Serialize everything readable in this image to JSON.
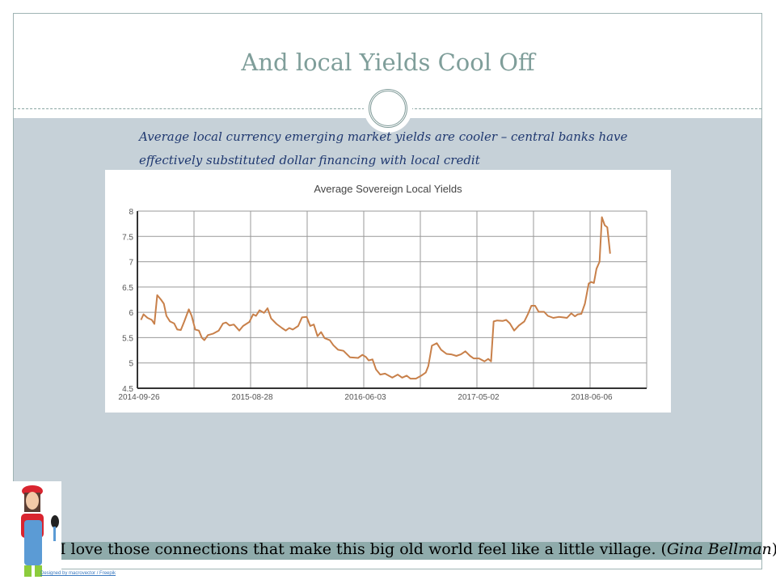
{
  "slide": {
    "title": "And local Yields Cool Off",
    "subtitle": "Average local currency  emerging market yields are  cooler – central banks have effectively substituted dollar financing with local credit",
    "quote_text": "I love those connections that make this big old world feel like a little village. (",
    "quote_author": "Gina Bellman",
    "quote_close": ")",
    "image_credit": "Designed by macrovector / Freepik",
    "colors": {
      "line": "#c8804a",
      "background_band": "#c6d1d8",
      "quote_bar": "#8fabab",
      "title": "#7f9e9a"
    }
  },
  "chart_data": {
    "type": "line",
    "title": "Average Sovereign Local Yields",
    "xlabel": "",
    "ylabel": "",
    "xlim": [
      0,
      216
    ],
    "ylim": [
      4.5,
      8
    ],
    "yticks": [
      4.5,
      5,
      5.5,
      6,
      6.5,
      7,
      7.5,
      8
    ],
    "ytick_labels": [
      "4.5",
      "5",
      "5.5",
      "6",
      "6.5",
      "7",
      "7.5",
      "8"
    ],
    "xticks": [
      0,
      48,
      96,
      144,
      192
    ],
    "xtick_labels": [
      "2014-09-26",
      "2015-08-28",
      "2016-06-03",
      "2017-05-02",
      "2018-06-06"
    ],
    "xgrid": [
      0,
      24,
      48,
      72,
      96,
      120,
      144,
      168,
      192,
      216
    ],
    "grid": true,
    "legend": "none",
    "series": [
      {
        "name": "Average Sovereign Local Yields",
        "x": [
          1.5,
          2.6,
          4.3,
          6.1,
          7.2,
          8.4,
          10,
          11.2,
          12.3,
          13.8,
          15.6,
          16.9,
          18.4,
          19.9,
          21.8,
          23,
          24.5,
          26.1,
          27.3,
          28.4,
          29.9,
          32.2,
          34.5,
          36.3,
          37.6,
          39.1,
          40.9,
          43.2,
          44.8,
          47.5,
          49.1,
          50.3,
          51.8,
          53.7,
          55.2,
          56.7,
          59,
          61.3,
          62.9,
          64.4,
          65.9,
          68.2,
          69.8,
          71.8,
          73.3,
          74.8,
          76.4,
          77.9,
          79.4,
          81.6,
          83.1,
          85.1,
          87.4,
          90.2,
          93.6,
          95.4,
          96.9,
          98.1,
          99.7,
          101.2,
          103,
          105,
          108.1,
          110.4,
          112.3,
          114.2,
          115.8,
          118.1,
          120.4,
          122.3,
          123.4,
          124.9,
          127,
          128.8,
          131.1,
          133.1,
          135.3,
          137.2,
          139.1,
          141.1,
          142.6,
          144.9,
          147.2,
          148.8,
          150,
          151.1,
          152.6,
          154.9,
          156.4,
          158,
          159.8,
          161.8,
          164.1,
          165.6,
          167.1,
          168.7,
          170.2,
          172.5,
          174.1,
          176.4,
          178.7,
          180.6,
          182.2,
          184,
          185.6,
          186.8,
          188.3,
          189.8,
          191.4,
          192.5,
          193.6,
          194.7,
          196,
          197,
          198.2,
          199.3,
          200.5
        ],
        "y": [
          5.85,
          5.96,
          5.89,
          5.85,
          5.77,
          6.34,
          6.25,
          6.17,
          5.93,
          5.82,
          5.78,
          5.66,
          5.65,
          5.82,
          6.06,
          5.93,
          5.66,
          5.64,
          5.5,
          5.45,
          5.55,
          5.58,
          5.64,
          5.78,
          5.8,
          5.74,
          5.76,
          5.64,
          5.73,
          5.81,
          5.96,
          5.93,
          6.04,
          5.99,
          6.08,
          5.88,
          5.77,
          5.69,
          5.64,
          5.69,
          5.66,
          5.73,
          5.9,
          5.91,
          5.73,
          5.76,
          5.53,
          5.61,
          5.49,
          5.45,
          5.35,
          5.26,
          5.24,
          5.11,
          5.1,
          5.16,
          5.12,
          5.05,
          5.07,
          4.87,
          4.77,
          4.79,
          4.71,
          4.77,
          4.71,
          4.75,
          4.69,
          4.69,
          4.75,
          4.81,
          4.94,
          5.34,
          5.39,
          5.26,
          5.18,
          5.17,
          5.14,
          5.17,
          5.23,
          5.14,
          5.09,
          5.09,
          5.03,
          5.08,
          5.03,
          5.82,
          5.84,
          5.83,
          5.85,
          5.78,
          5.64,
          5.74,
          5.82,
          5.96,
          6.13,
          6.13,
          6.01,
          6.01,
          5.93,
          5.89,
          5.91,
          5.9,
          5.89,
          5.98,
          5.92,
          5.96,
          5.97,
          6.17,
          6.57,
          6.6,
          6.58,
          6.86,
          7.0,
          7.88,
          7.72,
          7.68,
          7.16
        ]
      }
    ]
  }
}
